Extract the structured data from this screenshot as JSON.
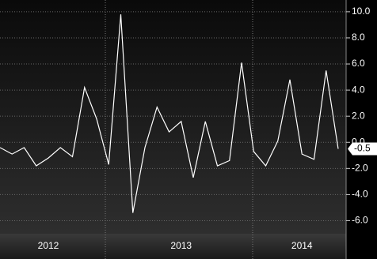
{
  "chart_data": {
    "type": "line",
    "categories": [
      null,
      null,
      null,
      null,
      "2012",
      null,
      null,
      null,
      null,
      null,
      null,
      null,
      null,
      null,
      null,
      "2013",
      null,
      null,
      null,
      null,
      null,
      null,
      null,
      null,
      null,
      "2014",
      null,
      null,
      null
    ],
    "series": [
      {
        "color": "#ffffff",
        "values": [
          -0.4,
          -0.9,
          -0.4,
          -1.8,
          -1.2,
          -0.4,
          -1.1,
          4.2,
          1.8,
          -1.7,
          9.8,
          -5.4,
          -0.4,
          2.7,
          0.8,
          1.6,
          -2.7,
          1.6,
          -1.8,
          -1.4,
          6.1,
          -0.7,
          -1.8,
          0.1,
          4.8,
          -0.9,
          -1.3,
          5.5,
          -0.5
        ]
      }
    ],
    "ylim": [
      -7.0,
      10.9
    ],
    "yticks": [
      {
        "value": 10,
        "label": "10.0"
      },
      {
        "value": 8,
        "label": "8.0"
      },
      {
        "value": 6,
        "label": "6.0"
      },
      {
        "value": 4,
        "label": "4.0"
      },
      {
        "value": 2,
        "label": "2.0"
      },
      {
        "value": 0,
        "label": "0.0"
      },
      {
        "value": -2,
        "label": "-2.0"
      },
      {
        "value": -4,
        "label": "-4.0"
      },
      {
        "value": -6,
        "label": "-6.0"
      }
    ],
    "grid": true
  }
}
